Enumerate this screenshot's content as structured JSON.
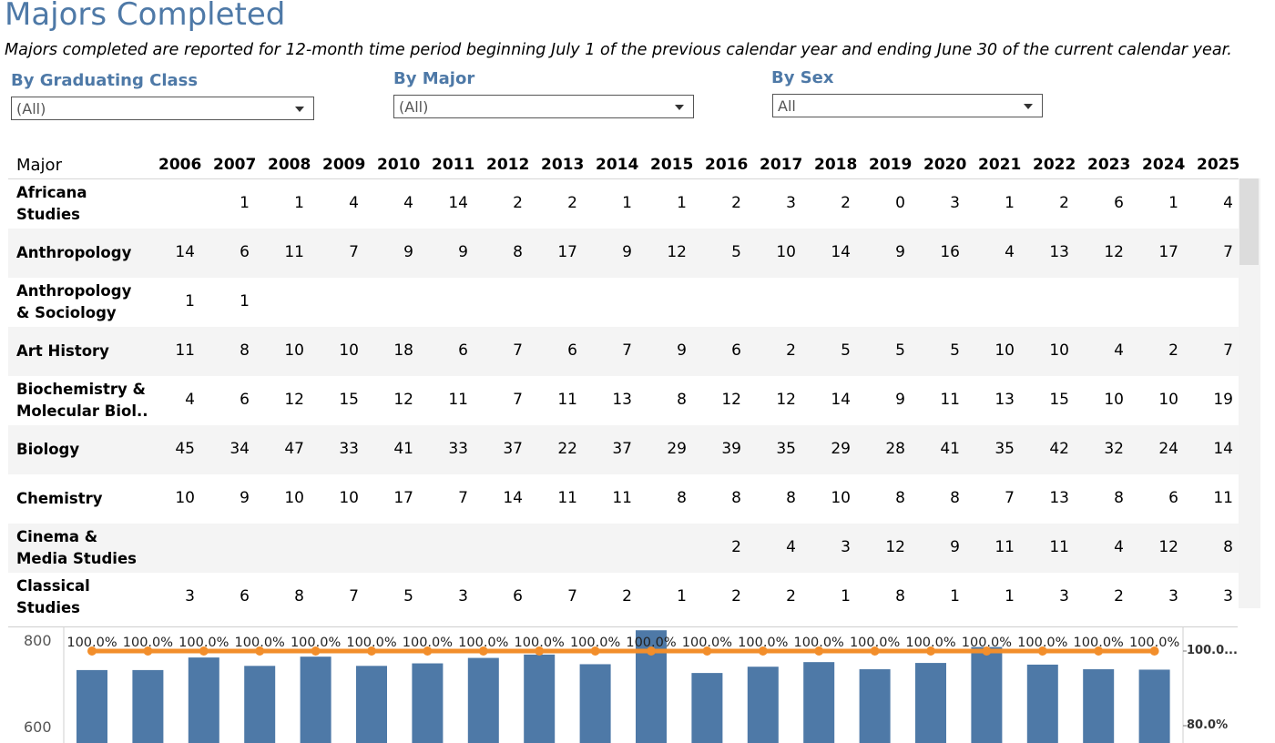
{
  "page": {
    "title": "Majors Completed",
    "subtitle": "Majors completed are reported for 12-month time period beginning July 1 of the previous calendar year and ending June 30 of the current calendar year."
  },
  "filters": [
    {
      "label": "By Graduating Class",
      "value": "(All)"
    },
    {
      "label": "By Major",
      "value": "(All)"
    },
    {
      "label": "By Sex",
      "value": "All"
    }
  ],
  "table": {
    "major_header": "Major",
    "years": [
      "2006",
      "2007",
      "2008",
      "2009",
      "2010",
      "2011",
      "2012",
      "2013",
      "2014",
      "2015",
      "2016",
      "2017",
      "2018",
      "2019",
      "2020",
      "2021",
      "2022",
      "2023",
      "2024",
      "2025"
    ],
    "rows": [
      {
        "name": "Africana Studies",
        "values": [
          "",
          "1",
          "1",
          "4",
          "4",
          "14",
          "2",
          "2",
          "1",
          "1",
          "2",
          "3",
          "2",
          "0",
          "3",
          "1",
          "2",
          "6",
          "1",
          "4"
        ]
      },
      {
        "name": "Anthropology",
        "values": [
          "14",
          "6",
          "11",
          "7",
          "9",
          "9",
          "8",
          "17",
          "9",
          "12",
          "5",
          "10",
          "14",
          "9",
          "16",
          "4",
          "13",
          "12",
          "17",
          "7"
        ]
      },
      {
        "name": "Anthropology & Sociology",
        "values": [
          "1",
          "1",
          "",
          "",
          "",
          "",
          "",
          "",
          "",
          "",
          "",
          "",
          "",
          "",
          "",
          "",
          "",
          "",
          "",
          ""
        ]
      },
      {
        "name": "Art History",
        "values": [
          "11",
          "8",
          "10",
          "10",
          "18",
          "6",
          "7",
          "6",
          "7",
          "9",
          "6",
          "2",
          "5",
          "5",
          "5",
          "10",
          "10",
          "4",
          "2",
          "7"
        ]
      },
      {
        "name": "Biochemistry & Molecular Biol..",
        "values": [
          "4",
          "6",
          "12",
          "15",
          "12",
          "11",
          "7",
          "11",
          "13",
          "8",
          "12",
          "12",
          "14",
          "9",
          "11",
          "13",
          "15",
          "10",
          "10",
          "19"
        ]
      },
      {
        "name": "Biology",
        "values": [
          "45",
          "34",
          "47",
          "33",
          "41",
          "33",
          "37",
          "22",
          "37",
          "29",
          "39",
          "35",
          "29",
          "28",
          "41",
          "35",
          "42",
          "32",
          "24",
          "14"
        ]
      },
      {
        "name": "Chemistry",
        "values": [
          "10",
          "9",
          "10",
          "10",
          "17",
          "7",
          "14",
          "11",
          "11",
          "8",
          "8",
          "8",
          "10",
          "8",
          "8",
          "7",
          "13",
          "8",
          "6",
          "11"
        ]
      },
      {
        "name": "Cinema & Media Studies",
        "values": [
          "",
          "",
          "",
          "",
          "",
          "",
          "",
          "",
          "",
          "",
          "2",
          "4",
          "3",
          "12",
          "9",
          "11",
          "11",
          "4",
          "12",
          "8"
        ]
      },
      {
        "name": "Classical Studies",
        "values": [
          "3",
          "6",
          "8",
          "7",
          "5",
          "3",
          "6",
          "7",
          "2",
          "1",
          "2",
          "2",
          "1",
          "8",
          "1",
          "1",
          "3",
          "2",
          "3",
          "3"
        ]
      }
    ]
  },
  "chart_data": {
    "type": "bar",
    "categories": [
      "2006",
      "2007",
      "2008",
      "2009",
      "2010",
      "2011",
      "2012",
      "2013",
      "2014",
      "2015",
      "2016",
      "2017",
      "2018",
      "2019",
      "2020",
      "2021",
      "2022",
      "2023",
      "2024",
      "2025"
    ],
    "series": [
      {
        "type": "bar",
        "axis": "left",
        "values": [
          735,
          735,
          765,
          745,
          767,
          745,
          751,
          764,
          772,
          749,
          830,
          728,
          743,
          754,
          737,
          752,
          790,
          748,
          737,
          736
        ]
      },
      {
        "type": "line",
        "axis": "right",
        "values": [
          100,
          100,
          100,
          100,
          100,
          100,
          100,
          100,
          100,
          100,
          100,
          100,
          100,
          100,
          100,
          100,
          100,
          100,
          100,
          100
        ],
        "labels": [
          "100.0%",
          "100.0%",
          "100.0%",
          "100.0%",
          "100.0%",
          "100.0%",
          "100.0%",
          "100.0%",
          "100.0%",
          "100.0%",
          "100.0%",
          "100.0%",
          "100.0%",
          "100.0%",
          "100.0%",
          "100.0%",
          "100.0%",
          "100.0%",
          "100.0%",
          "100.0%"
        ]
      }
    ],
    "left_axis": {
      "ticks": [
        "800",
        "600"
      ],
      "visible_range": [
        600,
        800
      ]
    },
    "right_axis": {
      "ticks": [
        "100.0...",
        "80.0%"
      ],
      "visible_range": [
        80,
        100
      ]
    },
    "colors": {
      "bar": "#4e79a7",
      "line": "#f28e2b"
    }
  }
}
